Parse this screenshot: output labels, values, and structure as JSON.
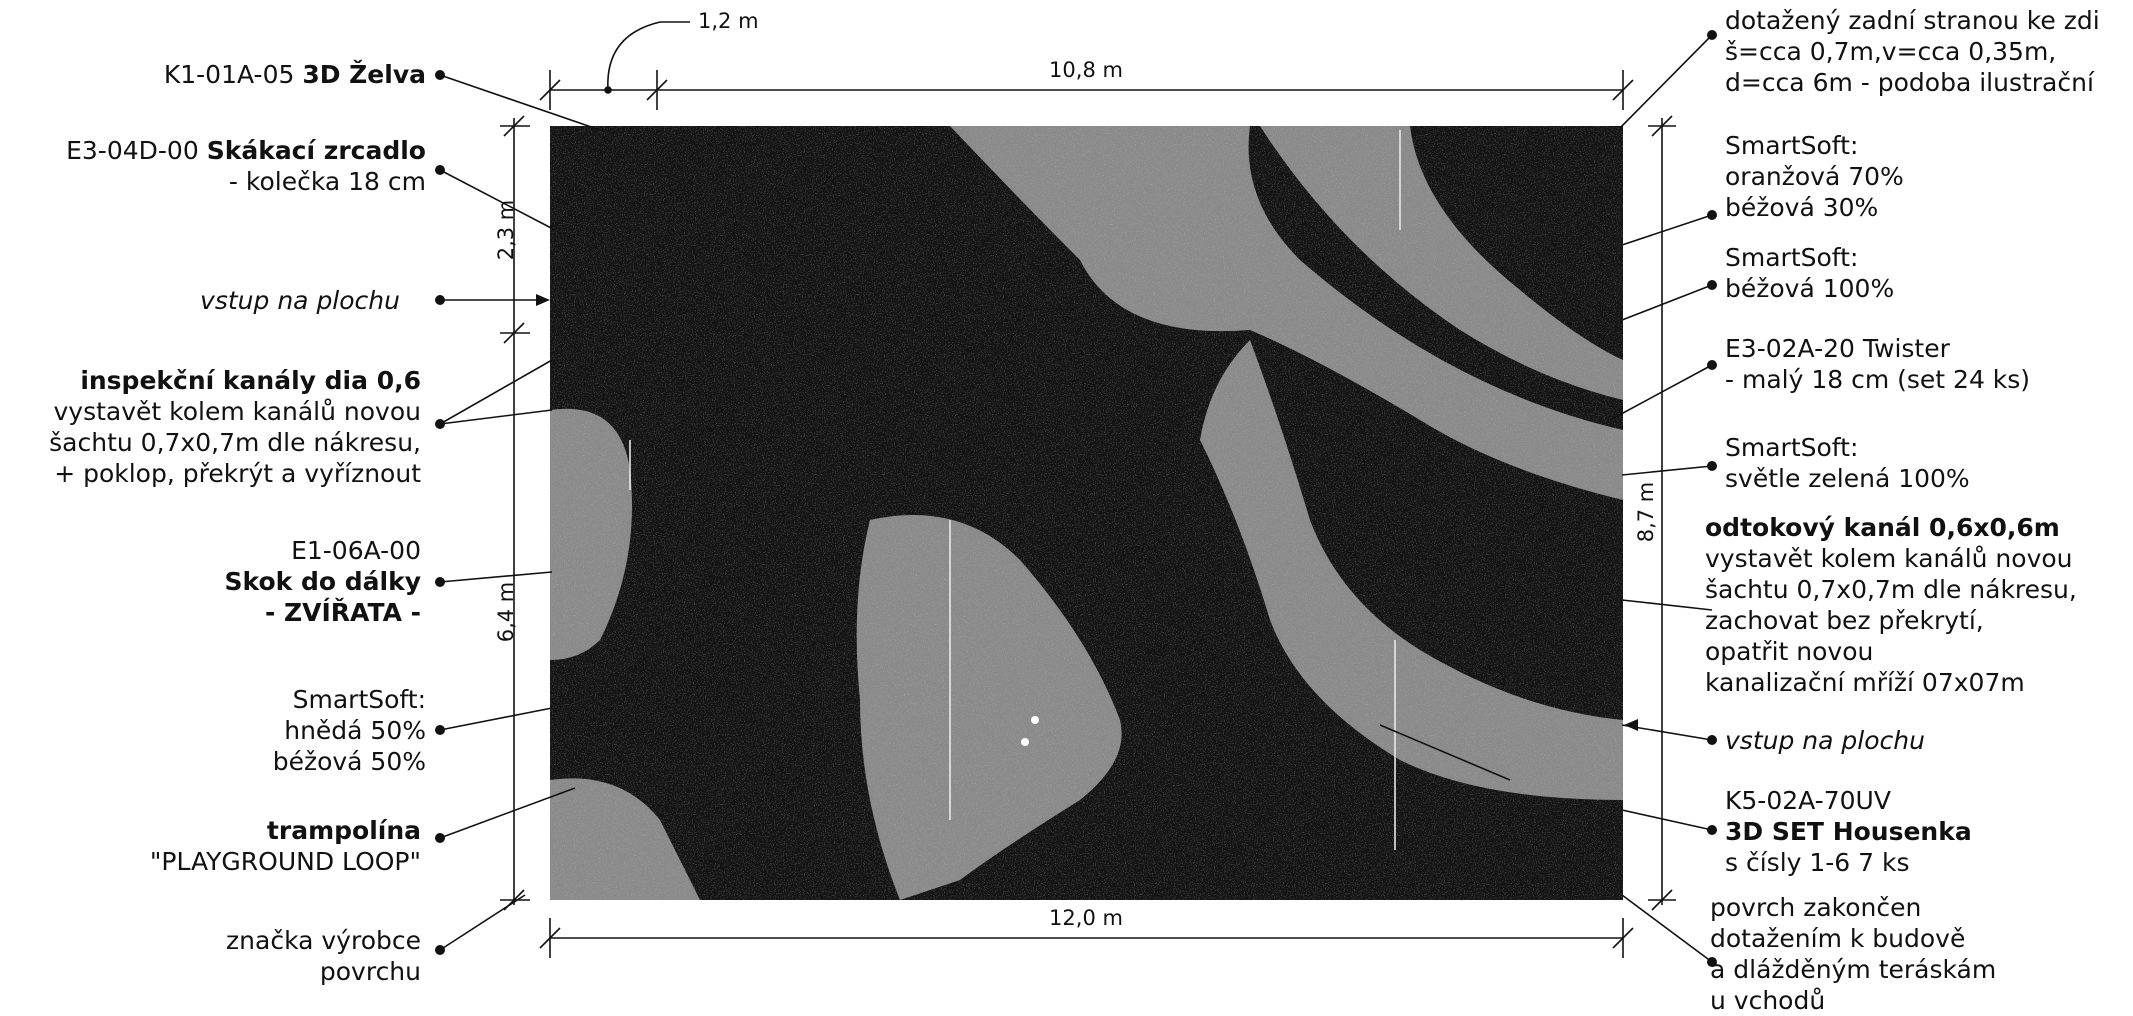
{
  "dimensions": {
    "slide_width": "1,2 m",
    "top_width": "10,8 m",
    "bottom_width": "12,0 m",
    "left_upper_height": "2,3 m",
    "left_lower_height": "6,4 m",
    "right_height": "8,7 m"
  },
  "labels_left": {
    "zelva": {
      "code": "K1-01A-05 ",
      "name": "3D Želva"
    },
    "zrcadlo": {
      "code": "E3-04D-00 ",
      "name": "Skákací zrcadlo",
      "detail": "- kolečka 18 cm"
    },
    "vstup_left": "vstup na plochu",
    "inspekcni": {
      "title": "inspekční kanály dia 0,6",
      "line1": "vystavět kolem kanálů novou",
      "line2": "šachtu 0,7x0,7m dle nákresu,",
      "line3": "+ poklop, překrýt a vyříznout"
    },
    "skok": {
      "code": "E1-06A-00",
      "name": "Skok do dálky",
      "sub": "- ZVÍŘATA -"
    },
    "smartsoft_hneda": {
      "title": "SmartSoft:",
      "line1": "hnědá 50%",
      "line2": "béžová 50%"
    },
    "trampolina": {
      "title": "trampolína",
      "sub": "\"PLAYGROUND LOOP\""
    },
    "znacka": {
      "line1": "značka výrobce",
      "line2": "povrchu"
    }
  },
  "labels_right": {
    "top_note": {
      "line1": "dotažený zadní stranou ke zdi",
      "line2": "š=cca 0,7m,v=cca 0,35m,",
      "line3": "d=cca 6m - podoba ilustrační"
    },
    "smartsoft_oranzova": {
      "title": "SmartSoft:",
      "line1": "oranžová 70%",
      "line2": "béžová 30%"
    },
    "smartsoft_bezova": {
      "title": "SmartSoft:",
      "line1": "béžová 100%"
    },
    "twister": {
      "title": "E3-02A-20 Twister",
      "line1": "- malý 18 cm  (set 24 ks)"
    },
    "smartsoft_zelena": {
      "title": "SmartSoft:",
      "line1": "světle zelená 100%"
    },
    "odtokovy": {
      "title": "odtokový kanál 0,6x0,6m",
      "line1": "vystavět kolem kanálů novou",
      "line2": "šachtu 0,7x0,7m dle nákresu,",
      "line3": "zachovat bez překrytí,",
      "line4": "opatřit novou",
      "line5": "kanalizační mříží 07x07m"
    },
    "vstup_right": "vstup na plochu",
    "housenka": {
      "code": "K5-02A-70UV",
      "name": "3D SET Housenka",
      "sub": "s čísly 1-6  7 ks"
    },
    "povrch": {
      "line1": "povrch zakončen",
      "line2": "dotažením k budově",
      "line3": "a dlážděným teráskám",
      "line4": "u vchodů"
    }
  },
  "colors": {
    "dark_surface": "#151515",
    "light_band": "#8a8a8a",
    "ink": "#111111"
  }
}
